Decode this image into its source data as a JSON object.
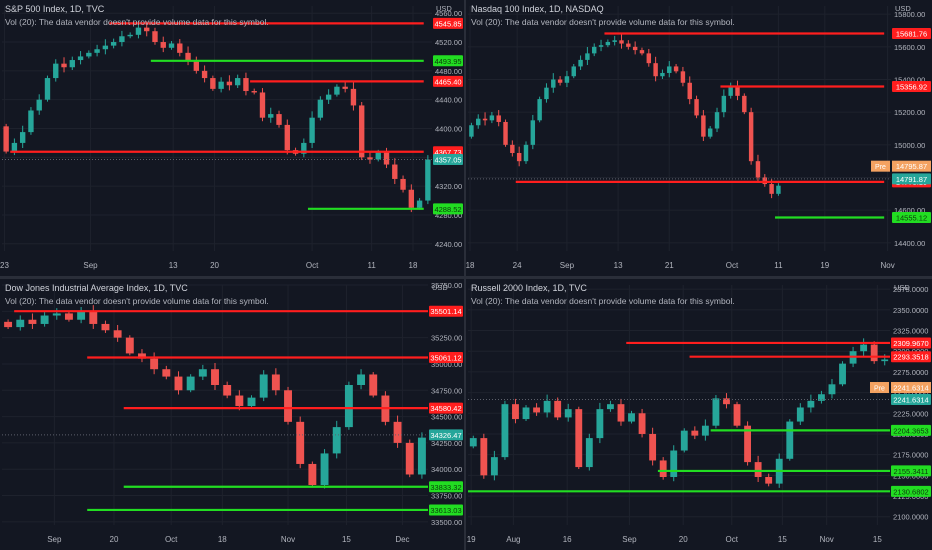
{
  "colors": {
    "background": "#131722",
    "grid": "#1e222d",
    "axis_text": "#b2b5be",
    "up": "#26a69a",
    "down": "#ef5350",
    "red_line": "#ff1e1e",
    "green_line": "#22dd22",
    "pre_label": "#f4a261"
  },
  "chart_data": [
    {
      "type": "candlestick",
      "title": "S&P 500 Index, 1D, TVC",
      "volume_note": "Vol (20): The data vendor doesn't provide volume data for this symbol.",
      "currency": "USD",
      "ylim": [
        4230,
        4570
      ],
      "y_ticks": [
        4560.0,
        4520.0,
        4480.0,
        4440.0,
        4400.0,
        4360.0,
        4320.0,
        4280.0,
        4240.0
      ],
      "x_labels": [
        "23",
        "Sep",
        "13",
        "20",
        "Oct",
        "11",
        "18"
      ],
      "x_label_pos": [
        0.3,
        10.7,
        20.7,
        25.7,
        37.5,
        44.7,
        49.7
      ],
      "n_slots": 52,
      "start_price": 4403,
      "closes": [
        4368,
        4380,
        4395,
        4425,
        4440,
        4470,
        4490,
        4485,
        4495,
        4500,
        4505,
        4510,
        4515,
        4520,
        4528,
        4530,
        4540,
        4535,
        4520,
        4512,
        4518,
        4505,
        4495,
        4480,
        4470,
        4455,
        4465,
        4460,
        4470,
        4452,
        4450,
        4415,
        4420,
        4405,
        4370,
        4365,
        4380,
        4415,
        4440,
        4447,
        4458,
        4455,
        4432,
        4360,
        4357,
        4367,
        4350,
        4330,
        4315,
        4290,
        4300,
        4357
      ],
      "hline_end": 51,
      "lines": [
        {
          "value": 4545.85,
          "label": "4545.85",
          "color": "red",
          "from": 13
        },
        {
          "value": 4493.95,
          "label": "4493.95",
          "color": "green",
          "from": 18
        },
        {
          "value": 4465.4,
          "label": "4465.40",
          "color": "red",
          "from": 30
        },
        {
          "value": 4367.73,
          "label": "4367.73",
          "color": "red",
          "from": 1
        },
        {
          "value": 4288.52,
          "label": "4288.52",
          "color": "green",
          "from": 37
        }
      ],
      "last_price": {
        "value": 4357.05,
        "label": "4357.05"
      }
    },
    {
      "type": "candlestick",
      "title": "Nasdaq 100 Index, 1D, NASDAQ",
      "volume_note": "Vol (20): The data vendor doesn't provide volume data for this symbol.",
      "currency": "USD",
      "ylim": [
        14350,
        15850
      ],
      "y_ticks": [
        15800.0,
        15600.0,
        15400.0,
        15200.0,
        15000.0,
        14800.0,
        14600.0,
        14400.0
      ],
      "x_labels": [
        "18",
        "24",
        "Sep",
        "13",
        "21",
        "Oct",
        "11",
        "19",
        "Nov"
      ],
      "x_label_pos": [
        0.3,
        7.2,
        14.5,
        22.0,
        29.5,
        38.7,
        45.5,
        52.3,
        61.5
      ],
      "n_slots": 62,
      "start_price": 15050,
      "closes": [
        15120,
        15160,
        15150,
        15180,
        15140,
        15000,
        14950,
        14900,
        15000,
        15150,
        15280,
        15350,
        15400,
        15380,
        15420,
        15480,
        15520,
        15560,
        15600,
        15610,
        15630,
        15640,
        15620,
        15600,
        15580,
        15560,
        15500,
        15420,
        15440,
        15480,
        15450,
        15380,
        15280,
        15180,
        15050,
        15100,
        15200,
        15300,
        15360,
        15300,
        15200,
        14900,
        14800,
        14760,
        14700,
        14750
      ],
      "hline_end": 61,
      "lines": [
        {
          "value": 15681.76,
          "label": "15681.76",
          "color": "red",
          "from": 20
        },
        {
          "value": 15356.92,
          "label": "15356.92",
          "color": "red",
          "from": 37
        },
        {
          "value": 14773.19,
          "label": "14773.19",
          "color": "red",
          "from": 7
        },
        {
          "value": 14555.12,
          "label": "14555.12",
          "color": "green",
          "from": 45
        }
      ],
      "last_price": {
        "value": 14791.87,
        "label": "14791.87"
      },
      "pre_price": {
        "value": 14795.87,
        "label": "14795.87",
        "tag": "Pre"
      }
    },
    {
      "type": "candlestick",
      "title": "Dow Jones Industrial Average Index, 1D, TVC",
      "volume_note": "Vol (20): The data vendor doesn't provide volume data for this symbol.",
      "currency": "USD",
      "ylim": [
        33470,
        35750
      ],
      "y_ticks": [
        35750.0,
        35500.0,
        35250.0,
        35000.0,
        34750.0,
        34500.0,
        34250.0,
        34000.0,
        33750.0,
        33500.0
      ],
      "x_labels": [
        "Sep",
        "20",
        "Oct",
        "18",
        "Nov",
        "15",
        "Dec"
      ],
      "x_label_pos": [
        4.3,
        9.2,
        13.9,
        18.1,
        23.5,
        28.3,
        32.9
      ],
      "n_slots": 35,
      "start_price": 35400,
      "closes": [
        35350,
        35420,
        35380,
        35460,
        35480,
        35420,
        35500,
        35380,
        35320,
        35250,
        35100,
        35050,
        34950,
        34880,
        34750,
        34880,
        34950,
        34800,
        34700,
        34600,
        34680,
        34900,
        34750,
        34450,
        34050,
        33850,
        34150,
        34400,
        34800,
        34900,
        34700,
        34450,
        34250,
        33950,
        34300,
        34350,
        34550,
        34150,
        33850
      ],
      "hline_end": 35,
      "lines": [
        {
          "value": 35501.14,
          "label": "35501.14",
          "color": "red",
          "from": 1
        },
        {
          "value": 35061.12,
          "label": "35061.12",
          "color": "red",
          "from": 7
        },
        {
          "value": 34580.42,
          "label": "34580.42",
          "color": "red",
          "from": 10
        },
        {
          "value": 33833.32,
          "label": "33833.32",
          "color": "green",
          "from": 10
        },
        {
          "value": 33613.03,
          "label": "33613.03",
          "color": "green",
          "from": 7
        }
      ],
      "last_price": {
        "value": 34326.47,
        "label": "34326.47"
      }
    },
    {
      "type": "candlestick",
      "title": "Russell 2000 Index, 1D, TVC",
      "volume_note": "Vol (20): The data vendor doesn't provide volume data for this symbol.",
      "currency": "USD",
      "ylim": [
        2090,
        2380
      ],
      "y_ticks": [
        2375.0,
        2350.0,
        2325.0,
        2300.0,
        2275.0,
        2250.0,
        2225.0,
        2200.0,
        2175.0,
        2150.0,
        2125.0,
        2100.0
      ],
      "x_labels": [
        "19",
        "Aug",
        "16",
        "Sep",
        "20",
        "Oct",
        "15",
        "Nov",
        "15"
      ],
      "x_label_pos": [
        0.3,
        4.3,
        9.4,
        15.3,
        20.4,
        25.0,
        29.8,
        34.0,
        38.8
      ],
      "n_slots": 40,
      "start_price": 2185,
      "closes": [
        2195,
        2150,
        2172,
        2236,
        2218,
        2232,
        2226,
        2240,
        2220,
        2230,
        2160,
        2195,
        2230,
        2236,
        2215,
        2225,
        2200,
        2168,
        2148,
        2180,
        2204,
        2198,
        2210,
        2243,
        2236,
        2210,
        2166,
        2148,
        2140,
        2170,
        2215,
        2232,
        2240,
        2248,
        2260,
        2285,
        2300,
        2308,
        2288,
        2290,
        2270,
        2262,
        2255,
        2235,
        2230,
        2250,
        2270,
        2260,
        2247,
        2240,
        2235,
        2220,
        2215,
        2210,
        2200,
        2238,
        2252,
        2262,
        2275,
        2292,
        2268,
        2240,
        2222,
        2210,
        2241
      ],
      "hline_end": 40,
      "lines": [
        {
          "value": 2309.967,
          "label": "2309.9670",
          "color": "red",
          "from": 15
        },
        {
          "value": 2293.3518,
          "label": "2293.3518",
          "color": "red",
          "from": 21
        },
        {
          "value": 2204.3653,
          "label": "2204.3653",
          "color": "green",
          "from": 23
        },
        {
          "value": 2155.3411,
          "label": "2155.3411",
          "color": "green",
          "from": 18
        },
        {
          "value": 2130.6802,
          "label": "2130.6802",
          "color": "green",
          "from": 0
        }
      ],
      "last_price": {
        "value": 2241.6314,
        "label": "2241.6314"
      },
      "pre_price": {
        "value": 2241.6314,
        "label": "2241.6314",
        "tag": "Pre"
      }
    }
  ]
}
